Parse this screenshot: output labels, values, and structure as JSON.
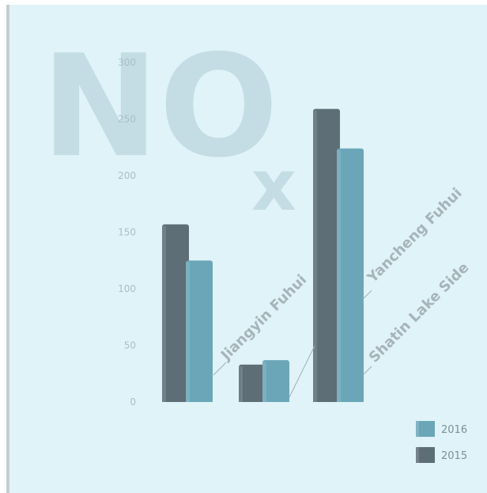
{
  "watermark": {
    "main": "NO",
    "sub": "x"
  },
  "chart_data": {
    "type": "bar",
    "categories": [
      "Jiangyin Fuhui",
      "Shatin Lake Side",
      "Yancheng Fuhui"
    ],
    "series": [
      {
        "name": "2015",
        "values": [
          157,
          33,
          259
        ],
        "color": "#5e6e76"
      },
      {
        "name": "2016",
        "values": [
          125,
          37,
          224
        ],
        "color": "#6aa6b8"
      }
    ],
    "ylim": [
      0,
      300
    ],
    "yticks": [
      "0",
      "50",
      "100",
      "150",
      "200",
      "250",
      "300"
    ],
    "grid": false,
    "legend": {
      "position": "bottom-right",
      "entries": [
        "2016",
        "2015"
      ]
    }
  }
}
